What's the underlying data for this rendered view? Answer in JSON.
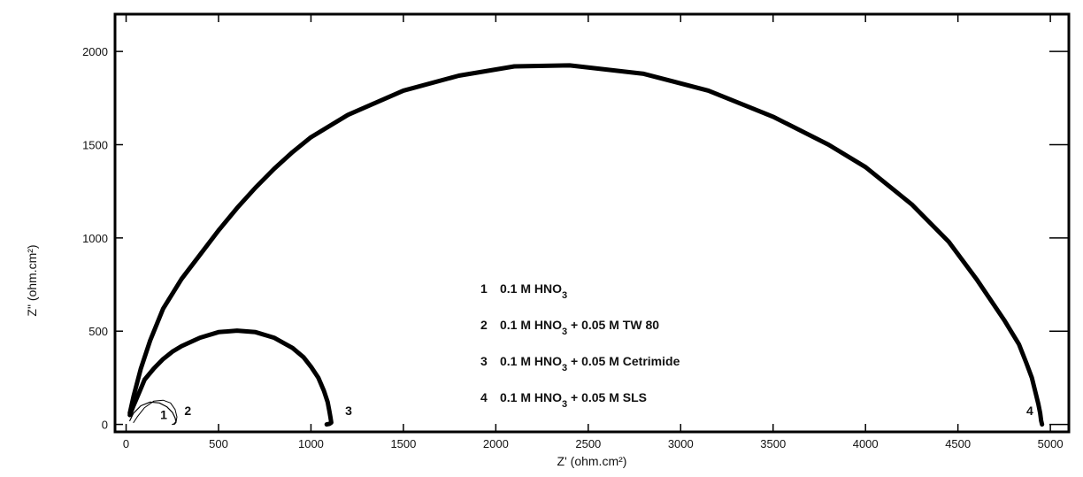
{
  "chart_data": {
    "type": "scatter",
    "title": "",
    "xlabel": "Z' (ohm.cm²)",
    "ylabel": "Z\" (ohm.cm²)",
    "xlim": [
      -60,
      5100
    ],
    "ylim": [
      -40,
      2200
    ],
    "grid": false,
    "x_ticks": [
      0,
      500,
      1000,
      1500,
      2000,
      2500,
      3000,
      3500,
      4000,
      4500,
      5000
    ],
    "y_ticks": [
      0,
      500,
      1000,
      1500,
      2000
    ],
    "legend_placement": "center",
    "legend": [
      {
        "id": "1",
        "parts": [
          "0.1 M HNO",
          "3",
          ""
        ]
      },
      {
        "id": "2",
        "parts": [
          "0.1 M HNO",
          "3",
          "  + 0.05 M TW 80"
        ]
      },
      {
        "id": "3",
        "parts": [
          "0.1 M HNO",
          "3",
          "  + 0.05 M Cetrimide"
        ]
      },
      {
        "id": "4",
        "parts": [
          "0.1 M HNO",
          "3",
          " + 0.05 M SLS"
        ]
      }
    ],
    "series": [
      {
        "label": "1",
        "stroke": 1.2,
        "x": [
          20,
          40,
          80,
          130,
          180,
          220,
          250,
          265,
          270,
          260,
          250
        ],
        "y": [
          20,
          60,
          100,
          120,
          115,
          95,
          65,
          35,
          15,
          3,
          0
        ]
      },
      {
        "label": "2",
        "stroke": 1.0,
        "x": [
          40,
          60,
          100,
          150,
          200,
          240,
          265,
          275,
          270,
          260
        ],
        "y": [
          10,
          40,
          90,
          125,
          130,
          115,
          80,
          40,
          10,
          0
        ]
      },
      {
        "label": "3",
        "stroke": 5,
        "x": [
          20,
          40,
          70,
          100,
          150,
          200,
          250,
          300,
          400,
          500,
          600,
          700,
          800,
          900,
          960,
          1000,
          1040,
          1070,
          1090,
          1100,
          1105,
          1110,
          1100,
          1085
        ],
        "y": [
          50,
          100,
          170,
          240,
          300,
          350,
          390,
          420,
          465,
          495,
          503,
          495,
          465,
          410,
          360,
          310,
          250,
          180,
          120,
          70,
          40,
          10,
          3,
          0
        ]
      },
      {
        "label": "4",
        "stroke": 5,
        "x": [
          20,
          40,
          80,
          130,
          200,
          300,
          400,
          500,
          600,
          700,
          800,
          900,
          1000,
          1200,
          1500,
          1800,
          2100,
          2400,
          2800,
          3150,
          3500,
          3800,
          4000,
          4250,
          4450,
          4600,
          4750,
          4830,
          4870,
          4900,
          4920,
          4935,
          4945,
          4950,
          4955
        ],
        "y": [
          60,
          150,
          300,
          450,
          620,
          780,
          910,
          1040,
          1160,
          1270,
          1370,
          1460,
          1540,
          1660,
          1790,
          1870,
          1920,
          1925,
          1880,
          1790,
          1650,
          1500,
          1380,
          1180,
          980,
          780,
          560,
          430,
          330,
          250,
          170,
          110,
          60,
          20,
          0
        ]
      }
    ],
    "curve_labels": [
      {
        "text": "1",
        "x": 185,
        "y": 30
      },
      {
        "text": "2",
        "x": 315,
        "y": 50
      },
      {
        "text": "3",
        "x": 1185,
        "y": 50
      },
      {
        "text": "4",
        "x": 4870,
        "y": 50
      }
    ]
  }
}
